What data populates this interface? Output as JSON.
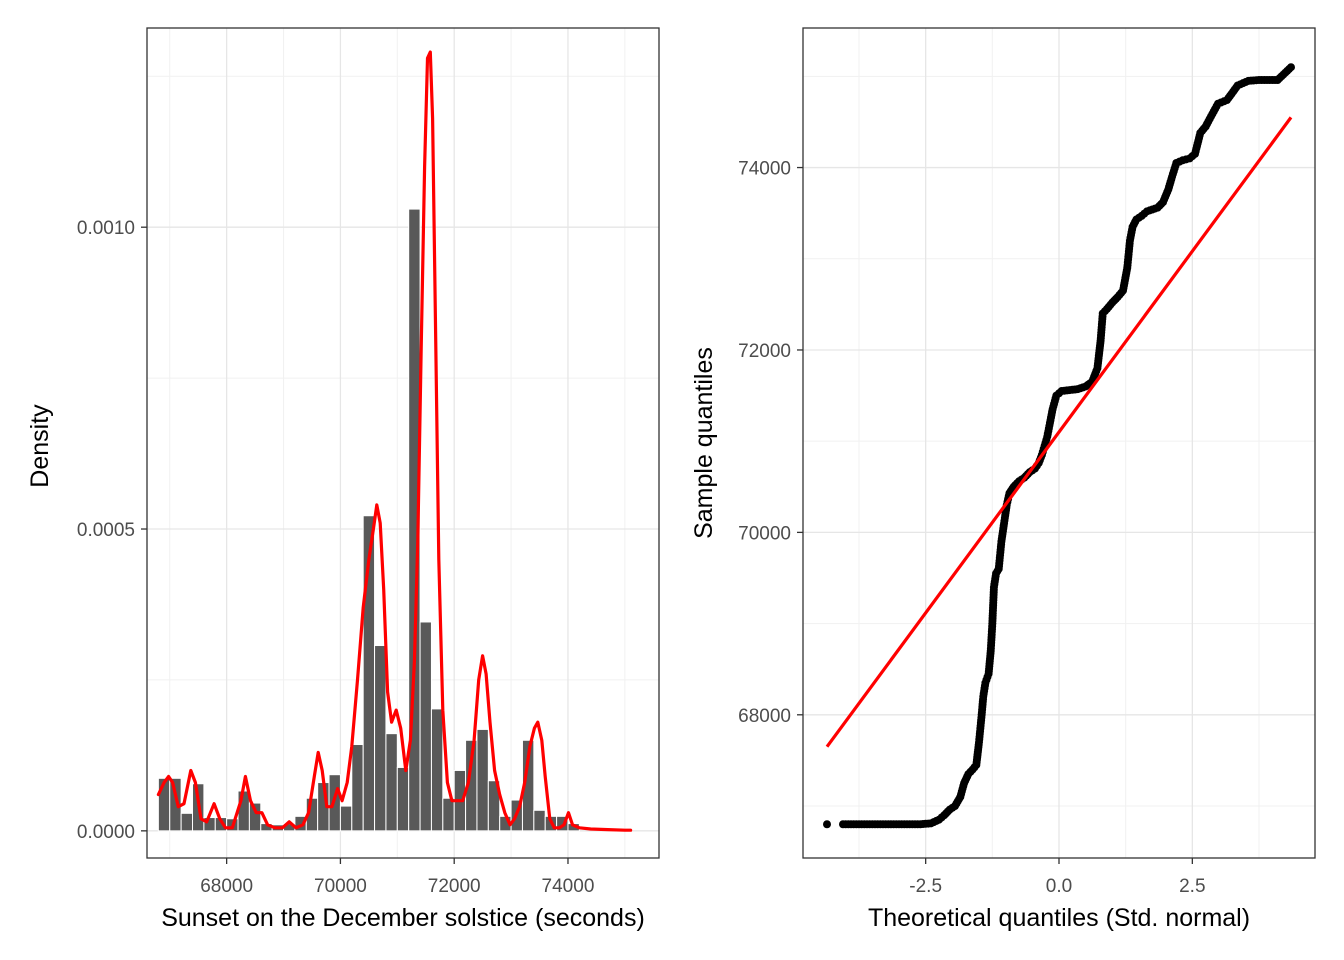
{
  "chart_data": [
    {
      "type": "bar",
      "subtype": "histogram-with-density",
      "xlabel": "Sunset on the December solstice (seconds)",
      "ylabel": "Density",
      "xlim": [
        66600,
        75600
      ],
      "ylim": [
        -4.5e-05,
        0.00133
      ],
      "x_ticks": [
        {
          "value": 68000,
          "label": "68000"
        },
        {
          "value": 70000,
          "label": "70000"
        },
        {
          "value": 72000,
          "label": "72000"
        },
        {
          "value": 74000,
          "label": "74000"
        }
      ],
      "y_ticks": [
        {
          "value": 0,
          "label": "0.0000"
        },
        {
          "value": 0.0005,
          "label": "0.0005"
        },
        {
          "value": 0.001,
          "label": "0.0010"
        }
      ],
      "grid": true,
      "bin_width": 200,
      "bins": [
        {
          "x": 66900,
          "y": 8.7e-05
        },
        {
          "x": 67100,
          "y": 8.7e-05
        },
        {
          "x": 67300,
          "y": 2.9e-05
        },
        {
          "x": 67500,
          "y": 7.8e-05
        },
        {
          "x": 67700,
          "y": 2.2e-05
        },
        {
          "x": 67900,
          "y": 2.2e-05
        },
        {
          "x": 68100,
          "y": 2e-05
        },
        {
          "x": 68300,
          "y": 6.6e-05
        },
        {
          "x": 68500,
          "y": 4.6e-05
        },
        {
          "x": 68700,
          "y": 1.2e-05
        },
        {
          "x": 68900,
          "y": 1e-05
        },
        {
          "x": 69100,
          "y": 1.2e-05
        },
        {
          "x": 69300,
          "y": 2.4e-05
        },
        {
          "x": 69500,
          "y": 5.4e-05
        },
        {
          "x": 69700,
          "y": 8e-05
        },
        {
          "x": 69900,
          "y": 9.3e-05
        },
        {
          "x": 70100,
          "y": 4.1e-05
        },
        {
          "x": 70300,
          "y": 0.000143
        },
        {
          "x": 70500,
          "y": 0.000522
        },
        {
          "x": 70700,
          "y": 0.000307
        },
        {
          "x": 70900,
          "y": 0.000161
        },
        {
          "x": 71100,
          "y": 0.000105
        },
        {
          "x": 71300,
          "y": 0.00103
        },
        {
          "x": 71500,
          "y": 0.000346
        },
        {
          "x": 71700,
          "y": 0.000202
        },
        {
          "x": 71900,
          "y": 5.4e-05
        },
        {
          "x": 72100,
          "y": 0.0001
        },
        {
          "x": 72300,
          "y": 0.00015
        },
        {
          "x": 72500,
          "y": 0.000168
        },
        {
          "x": 72700,
          "y": 8.3e-05
        },
        {
          "x": 72900,
          "y": 2.4e-05
        },
        {
          "x": 73100,
          "y": 5.1e-05
        },
        {
          "x": 73300,
          "y": 0.00015
        },
        {
          "x": 73500,
          "y": 3.4e-05
        },
        {
          "x": 73700,
          "y": 2.4e-05
        },
        {
          "x": 73900,
          "y": 2.4e-05
        },
        {
          "x": 74100,
          "y": 1.2e-05
        }
      ],
      "density_curve": {
        "color": "#ff0000",
        "points": [
          [
            66800,
            6e-05
          ],
          [
            66900,
            8e-05
          ],
          [
            66980,
            9e-05
          ],
          [
            67050,
            8e-05
          ],
          [
            67150,
            4e-05
          ],
          [
            67250,
            4.5e-05
          ],
          [
            67370,
            0.0001
          ],
          [
            67450,
            8e-05
          ],
          [
            67550,
            2e-05
          ],
          [
            67650,
            1.5e-05
          ],
          [
            67780,
            4.5e-05
          ],
          [
            67880,
            2e-05
          ],
          [
            67980,
            5e-06
          ],
          [
            68100,
            5e-06
          ],
          [
            68250,
            5e-05
          ],
          [
            68330,
            9e-05
          ],
          [
            68420,
            5e-05
          ],
          [
            68520,
            3e-05
          ],
          [
            68620,
            3e-05
          ],
          [
            68720,
            1e-05
          ],
          [
            68850,
            5e-06
          ],
          [
            68980,
            5e-06
          ],
          [
            69100,
            1.5e-05
          ],
          [
            69220,
            5e-06
          ],
          [
            69340,
            1e-05
          ],
          [
            69440,
            3e-05
          ],
          [
            69540,
            9e-05
          ],
          [
            69610,
            0.00013
          ],
          [
            69680,
            0.0001
          ],
          [
            69760,
            4e-05
          ],
          [
            69850,
            4e-05
          ],
          [
            69950,
            7e-05
          ],
          [
            70030,
            5e-05
          ],
          [
            70120,
            8e-05
          ],
          [
            70200,
            0.00014
          ],
          [
            70300,
            0.00025
          ],
          [
            70400,
            0.00037
          ],
          [
            70500,
            0.00045
          ],
          [
            70580,
            0.0005
          ],
          [
            70640,
            0.00054
          ],
          [
            70700,
            0.00051
          ],
          [
            70760,
            0.0004
          ],
          [
            70830,
            0.00023
          ],
          [
            70900,
            0.00018
          ],
          [
            70980,
            0.0002
          ],
          [
            71060,
            0.00017
          ],
          [
            71150,
            0.0001
          ],
          [
            71230,
            0.00015
          ],
          [
            71300,
            0.00028
          ],
          [
            71360,
            0.00048
          ],
          [
            71420,
            0.0008
          ],
          [
            71480,
            0.0011
          ],
          [
            71530,
            0.00128
          ],
          [
            71580,
            0.00129
          ],
          [
            71620,
            0.00118
          ],
          [
            71670,
            0.00085
          ],
          [
            71730,
            0.00045
          ],
          [
            71800,
            0.0002
          ],
          [
            71880,
            8e-05
          ],
          [
            71960,
            5e-05
          ],
          [
            72050,
            5e-05
          ],
          [
            72150,
            5e-05
          ],
          [
            72250,
            8e-05
          ],
          [
            72350,
            0.00015
          ],
          [
            72430,
            0.00025
          ],
          [
            72500,
            0.00029
          ],
          [
            72560,
            0.00026
          ],
          [
            72630,
            0.00018
          ],
          [
            72710,
            0.0001
          ],
          [
            72800,
            6e-05
          ],
          [
            72890,
            3e-05
          ],
          [
            72980,
            1e-05
          ],
          [
            73060,
            2e-05
          ],
          [
            73150,
            4e-05
          ],
          [
            73240,
            8e-05
          ],
          [
            73330,
            0.00014
          ],
          [
            73410,
            0.00017
          ],
          [
            73470,
            0.00018
          ],
          [
            73540,
            0.00015
          ],
          [
            73600,
            9e-05
          ],
          [
            73680,
            2e-05
          ],
          [
            73760,
            5e-06
          ],
          [
            73850,
            5e-06
          ],
          [
            73930,
            1e-05
          ],
          [
            74010,
            3e-05
          ],
          [
            74080,
            1e-05
          ],
          [
            74200,
            5e-06
          ],
          [
            74400,
            3e-06
          ],
          [
            74700,
            2e-06
          ],
          [
            75000,
            1e-06
          ],
          [
            75100,
            1e-06
          ]
        ]
      },
      "bar_color": "#595959"
    },
    {
      "type": "scatter",
      "subtype": "qq-plot",
      "xlabel": "Theoretical quantiles (Std. normal)",
      "ylabel": "Sample quantiles",
      "xlim": [
        -4.8,
        4.8
      ],
      "ylim": [
        66430,
        75530
      ],
      "x_ticks": [
        {
          "value": -2.5,
          "label": "-2.5"
        },
        {
          "value": 0,
          "label": "0.0"
        },
        {
          "value": 2.5,
          "label": "2.5"
        }
      ],
      "y_ticks": [
        {
          "value": 68000,
          "label": "68000"
        },
        {
          "value": 70000,
          "label": "70000"
        },
        {
          "value": 72000,
          "label": "72000"
        },
        {
          "value": 74000,
          "label": "74000"
        }
      ],
      "grid": true,
      "points": [
        [
          -4.35,
          66800
        ],
        [
          -4.05,
          66800
        ],
        [
          -3.8,
          66800
        ],
        [
          -3.6,
          66800
        ],
        [
          -3.4,
          66800
        ],
        [
          -3.2,
          66800
        ],
        [
          -3.0,
          66800
        ],
        [
          -2.8,
          66800
        ],
        [
          -2.6,
          66800
        ],
        [
          -2.4,
          66810
        ],
        [
          -2.25,
          66850
        ],
        [
          -2.15,
          66900
        ],
        [
          -2.05,
          66960
        ],
        [
          -1.95,
          67000
        ],
        [
          -1.85,
          67100
        ],
        [
          -1.78,
          67250
        ],
        [
          -1.7,
          67350
        ],
        [
          -1.62,
          67400
        ],
        [
          -1.55,
          67450
        ],
        [
          -1.5,
          67700
        ],
        [
          -1.45,
          68000
        ],
        [
          -1.42,
          68200
        ],
        [
          -1.38,
          68350
        ],
        [
          -1.32,
          68450
        ],
        [
          -1.28,
          68700
        ],
        [
          -1.25,
          69000
        ],
        [
          -1.22,
          69400
        ],
        [
          -1.18,
          69550
        ],
        [
          -1.13,
          69600
        ],
        [
          -1.08,
          69900
        ],
        [
          -1.03,
          70100
        ],
        [
          -0.98,
          70300
        ],
        [
          -0.93,
          70430
        ],
        [
          -0.85,
          70500
        ],
        [
          -0.75,
          70560
        ],
        [
          -0.65,
          70600
        ],
        [
          -0.55,
          70660
        ],
        [
          -0.45,
          70700
        ],
        [
          -0.38,
          70760
        ],
        [
          -0.32,
          70850
        ],
        [
          -0.27,
          70950
        ],
        [
          -0.22,
          71050
        ],
        [
          -0.17,
          71200
        ],
        [
          -0.12,
          71350
        ],
        [
          -0.05,
          71500
        ],
        [
          0.05,
          71550
        ],
        [
          0.2,
          71560
        ],
        [
          0.35,
          71570
        ],
        [
          0.5,
          71600
        ],
        [
          0.62,
          71650
        ],
        [
          0.72,
          71800
        ],
        [
          0.78,
          72100
        ],
        [
          0.82,
          72400
        ],
        [
          0.9,
          72450
        ],
        [
          1.0,
          72520
        ],
        [
          1.1,
          72580
        ],
        [
          1.2,
          72650
        ],
        [
          1.28,
          72900
        ],
        [
          1.33,
          73200
        ],
        [
          1.38,
          73350
        ],
        [
          1.45,
          73430
        ],
        [
          1.55,
          73470
        ],
        [
          1.65,
          73520
        ],
        [
          1.75,
          73540
        ],
        [
          1.85,
          73560
        ],
        [
          1.95,
          73620
        ],
        [
          2.05,
          73760
        ],
        [
          2.12,
          73900
        ],
        [
          2.2,
          74050
        ],
        [
          2.32,
          74080
        ],
        [
          2.45,
          74100
        ],
        [
          2.55,
          74150
        ],
        [
          2.65,
          74380
        ],
        [
          2.75,
          74450
        ],
        [
          2.85,
          74560
        ],
        [
          2.98,
          74700
        ],
        [
          3.15,
          74740
        ],
        [
          3.35,
          74900
        ],
        [
          3.55,
          74950
        ],
        [
          3.75,
          74960
        ],
        [
          3.95,
          74960
        ],
        [
          4.1,
          74960
        ],
        [
          4.35,
          75100
        ]
      ],
      "reference_line": {
        "color": "#ff0000",
        "from": [
          -4.35,
          67650
        ],
        "to": [
          4.35,
          74550
        ]
      }
    }
  ]
}
